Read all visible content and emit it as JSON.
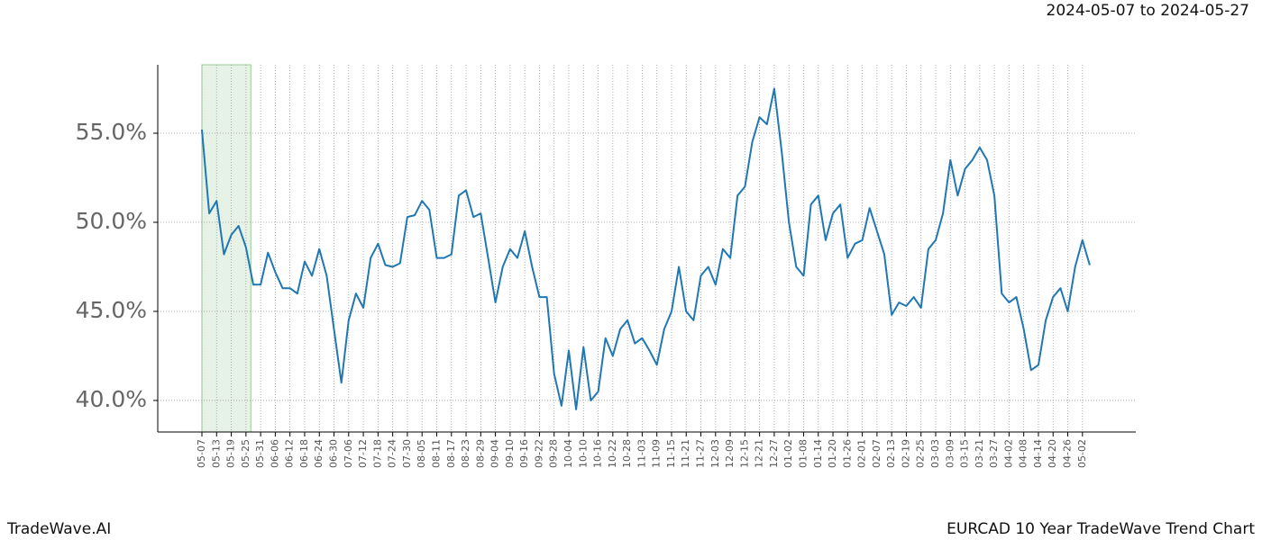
{
  "chart_data": {
    "type": "line",
    "title": "EURCAD 10 Year TradeWave Trend Chart",
    "subtitle": "2024-05-07 to 2024-05-27",
    "categories": [
      "05-07",
      null,
      "05-13",
      null,
      "05-19",
      null,
      "05-25",
      null,
      "05-31",
      null,
      "06-06",
      null,
      "06-12",
      null,
      "06-18",
      null,
      "06-24",
      null,
      "06-30",
      null,
      "07-06",
      null,
      "07-12",
      null,
      "07-18",
      null,
      "07-24",
      null,
      "07-30",
      null,
      "08-05",
      null,
      "08-11",
      null,
      "08-17",
      null,
      "08-23",
      null,
      "08-29",
      null,
      "09-04",
      null,
      "09-10",
      null,
      "09-16",
      null,
      "09-22",
      null,
      "09-28",
      null,
      "10-04",
      null,
      "10-10",
      null,
      "10-16",
      null,
      "10-22",
      null,
      "10-28",
      null,
      "11-03",
      null,
      "11-09",
      null,
      "11-15",
      null,
      "11-21",
      null,
      "11-27",
      null,
      "12-03",
      null,
      "12-09",
      null,
      "12-15",
      null,
      "12-21",
      null,
      "12-27",
      null,
      "01-02",
      null,
      "01-08",
      null,
      "01-14",
      null,
      "01-20",
      null,
      "01-26",
      null,
      "02-01",
      null,
      "02-07",
      null,
      "02-13",
      null,
      "02-19",
      null,
      "02-25",
      null,
      "03-03",
      null,
      "03-09",
      null,
      "03-15",
      null,
      "03-21",
      null,
      "03-27",
      null,
      "04-02",
      null,
      "04-08",
      null,
      "04-14",
      null,
      "04-20",
      null,
      "04-26",
      null,
      "05-02",
      null
    ],
    "values": [
      55.2,
      50.5,
      51.2,
      48.2,
      49.3,
      49.8,
      48.6,
      46.5,
      46.5,
      48.3,
      47.2,
      46.3,
      46.3,
      46.0,
      47.8,
      47.0,
      48.5,
      47.0,
      44.0,
      41.0,
      44.5,
      46.0,
      45.2,
      48.0,
      48.8,
      47.6,
      47.5,
      47.7,
      50.3,
      50.4,
      51.2,
      50.7,
      48.0,
      48.0,
      48.2,
      51.5,
      51.8,
      50.3,
      50.5,
      48.0,
      45.5,
      47.5,
      48.5,
      48.0,
      49.5,
      47.5,
      45.8,
      45.8,
      41.5,
      39.7,
      42.8,
      39.5,
      43.0,
      40.0,
      40.5,
      43.5,
      42.5,
      44.0,
      44.5,
      43.2,
      43.5,
      42.8,
      42.0,
      44.0,
      45.0,
      47.5,
      45.0,
      44.5,
      47.0,
      47.5,
      46.5,
      48.5,
      48.0,
      51.5,
      52.0,
      54.5,
      55.9,
      55.5,
      57.5,
      54.0,
      50.0,
      47.5,
      47.0,
      51.0,
      51.5,
      49.0,
      50.5,
      51.0,
      48.0,
      48.8,
      49.0,
      50.8,
      49.5,
      48.2,
      44.8,
      45.5,
      45.3,
      45.8,
      45.2,
      48.5,
      49.0,
      50.5,
      53.5,
      51.5,
      53.0,
      53.5,
      54.2,
      53.5,
      51.5,
      46.0,
      45.5,
      45.8,
      44.0,
      41.7,
      42.0,
      44.5,
      45.8,
      46.3,
      45.0,
      47.5,
      49.0,
      47.6
    ],
    "color": "#1f77b4",
    "highlight": {
      "from": 0,
      "to": 6.67,
      "color": "#e6f2e6"
    },
    "ylim": [
      38.23,
      58.84
    ],
    "yticks": [
      {
        "value": 40,
        "label": "40.0%"
      },
      {
        "value": 45,
        "label": "45.0%"
      },
      {
        "value": 50,
        "label": "50.0%"
      },
      {
        "value": 55,
        "label": "55.0%"
      }
    ],
    "grid": true
  },
  "footer": {
    "brand": "TradeWave.AI"
  }
}
